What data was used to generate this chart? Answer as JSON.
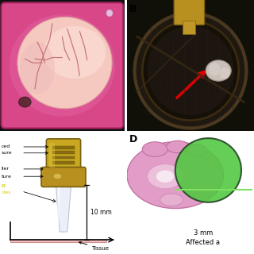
{
  "bg_color": "#ffffff",
  "panel_A_bg": "#d04080",
  "panel_A_brain_color": "#f0b8b8",
  "panel_A_tray_color": "#c03070",
  "panel_B_bg": "#1a1010",
  "panel_B_bowl_outer": "#2a2020",
  "panel_B_bowl_inner": "#181818",
  "panel_B_metal": "#403020",
  "barrel_top_color": "#c8a828",
  "barrel_mid_color": "#b89020",
  "barrel_dark": "#806010",
  "tube_color": "#e0e4f0",
  "tube_shadow": "#c8cce0",
  "tissue_line_color": "#f0b0b0",
  "brain_pink": "#dc96c0",
  "brain_light": "#f0c8e0",
  "brain_white": "#f8f0f4",
  "green_fill": "#50c840",
  "green_edge": "#204420",
  "green_line": "#80e060",
  "text_10mm": "10 mm",
  "text_tissue": "Tissue",
  "text_3mm": "3 mm",
  "text_affected": "Affected a",
  "yellow_color": "#d4c800",
  "arrow_red": "#cc0000"
}
